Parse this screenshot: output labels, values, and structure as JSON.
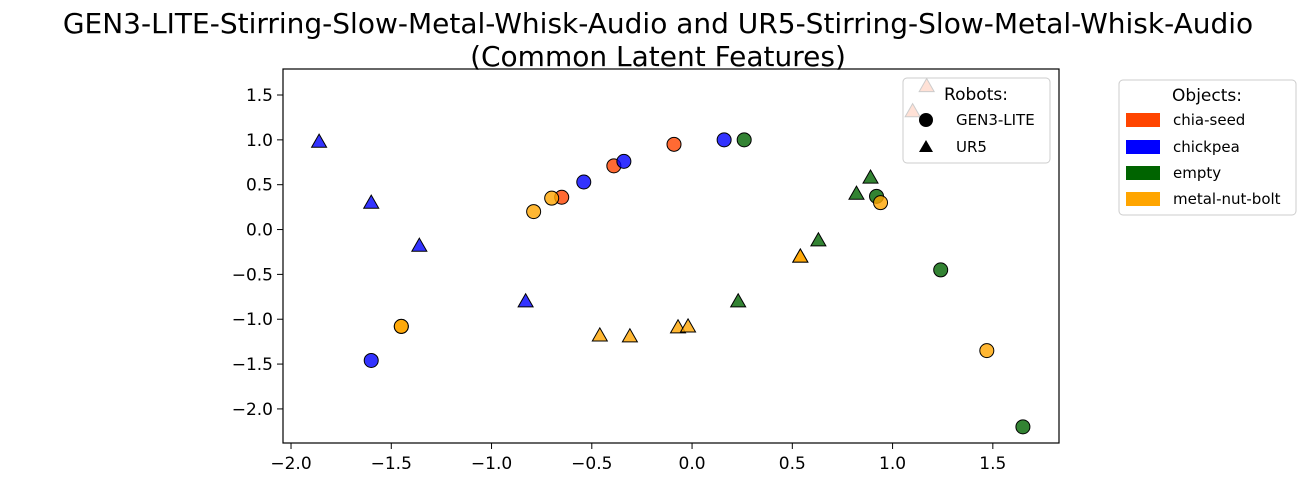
{
  "chart_data": {
    "type": "scatter",
    "title": "GEN3-LITE-Stirring-Slow-Metal-Whisk-Audio and UR5-Stirring-Slow-Metal-Whisk-Audio",
    "subtitle": "(Common Latent Features)",
    "xlabel": "",
    "ylabel": "",
    "xlim": [
      -2.04,
      1.83
    ],
    "ylim": [
      -2.38,
      1.79
    ],
    "x_ticks": [
      -2.0,
      -1.5,
      -1.0,
      -0.5,
      0.0,
      0.5,
      1.0,
      1.5
    ],
    "x_tick_labels": [
      "−2.0",
      "−1.5",
      "−1.0",
      "−0.5",
      "0.0",
      "0.5",
      "1.0",
      "1.5"
    ],
    "y_ticks": [
      1.5,
      1.0,
      0.5,
      0.0,
      -0.5,
      -1.0,
      -1.5,
      -2.0
    ],
    "y_tick_labels": [
      "1.5",
      "1.0",
      "0.5",
      "0.0",
      "−0.5",
      "−1.0",
      "−1.5",
      "−2.0"
    ],
    "grid": false,
    "colors": {
      "chia-seed": "#ff4500",
      "chickpea": "#0000ff",
      "empty": "#006400",
      "metal-nut-bolt": "#ffa500"
    },
    "robots_legend": {
      "title": "Robots:",
      "placement": "upper right inside plot",
      "entries": [
        {
          "label": "GEN3-LITE",
          "marker": "circle"
        },
        {
          "label": "UR5",
          "marker": "triangle"
        }
      ]
    },
    "objects_legend": {
      "title": "Objects:",
      "placement": "outside right",
      "entries": [
        {
          "label": "chia-seed",
          "color": "#ff4500"
        },
        {
          "label": "chickpea",
          "color": "#0000ff"
        },
        {
          "label": "empty",
          "color": "#006400"
        },
        {
          "label": "metal-nut-bolt",
          "color": "#ffa500"
        }
      ]
    },
    "points": [
      {
        "x": -0.09,
        "y": 0.95,
        "robot": "GEN3-LITE",
        "object": "chia-seed"
      },
      {
        "x": -0.39,
        "y": 0.71,
        "robot": "GEN3-LITE",
        "object": "chia-seed"
      },
      {
        "x": -0.65,
        "y": 0.36,
        "robot": "GEN3-LITE",
        "object": "chia-seed"
      },
      {
        "x": 0.16,
        "y": 1.0,
        "robot": "GEN3-LITE",
        "object": "chickpea"
      },
      {
        "x": -0.34,
        "y": 0.76,
        "robot": "GEN3-LITE",
        "object": "chickpea"
      },
      {
        "x": -0.54,
        "y": 0.53,
        "robot": "GEN3-LITE",
        "object": "chickpea"
      },
      {
        "x": -1.6,
        "y": -1.46,
        "robot": "GEN3-LITE",
        "object": "chickpea"
      },
      {
        "x": 0.26,
        "y": 1.0,
        "robot": "GEN3-LITE",
        "object": "empty"
      },
      {
        "x": 0.92,
        "y": 0.37,
        "robot": "GEN3-LITE",
        "object": "empty"
      },
      {
        "x": 1.24,
        "y": -0.45,
        "robot": "GEN3-LITE",
        "object": "empty"
      },
      {
        "x": 1.65,
        "y": -2.2,
        "robot": "GEN3-LITE",
        "object": "empty"
      },
      {
        "x": -0.7,
        "y": 0.35,
        "robot": "GEN3-LITE",
        "object": "metal-nut-bolt"
      },
      {
        "x": -0.79,
        "y": 0.2,
        "robot": "GEN3-LITE",
        "object": "metal-nut-bolt"
      },
      {
        "x": 0.94,
        "y": 0.3,
        "robot": "GEN3-LITE",
        "object": "metal-nut-bolt"
      },
      {
        "x": 1.47,
        "y": -1.35,
        "robot": "GEN3-LITE",
        "object": "metal-nut-bolt"
      },
      {
        "x": -1.45,
        "y": -1.08,
        "robot": "GEN3-LITE",
        "object": "metal-nut-bolt"
      },
      {
        "x": -1.45,
        "y": -1.08,
        "robot": "GEN3-LITE",
        "object": "metal-nut-bolt"
      },
      {
        "x": 1.17,
        "y": 1.6,
        "robot": "UR5",
        "object": "chia-seed"
      },
      {
        "x": 1.1,
        "y": 1.32,
        "robot": "UR5",
        "object": "chia-seed"
      },
      {
        "x": -1.86,
        "y": 0.98,
        "robot": "UR5",
        "object": "chickpea"
      },
      {
        "x": -1.6,
        "y": 0.3,
        "robot": "UR5",
        "object": "chickpea"
      },
      {
        "x": -1.36,
        "y": -0.18,
        "robot": "UR5",
        "object": "chickpea"
      },
      {
        "x": -0.83,
        "y": -0.8,
        "robot": "UR5",
        "object": "chickpea"
      },
      {
        "x": 0.89,
        "y": 0.58,
        "robot": "UR5",
        "object": "empty"
      },
      {
        "x": 0.82,
        "y": 0.4,
        "robot": "UR5",
        "object": "empty"
      },
      {
        "x": 0.63,
        "y": -0.12,
        "robot": "UR5",
        "object": "empty"
      },
      {
        "x": 0.23,
        "y": -0.8,
        "robot": "UR5",
        "object": "empty"
      },
      {
        "x": 0.54,
        "y": -0.3,
        "robot": "UR5",
        "object": "metal-nut-bolt"
      },
      {
        "x": 0.54,
        "y": -0.3,
        "robot": "UR5",
        "object": "metal-nut-bolt"
      },
      {
        "x": -0.46,
        "y": -1.18,
        "robot": "UR5",
        "object": "metal-nut-bolt"
      },
      {
        "x": -0.31,
        "y": -1.19,
        "robot": "UR5",
        "object": "metal-nut-bolt"
      },
      {
        "x": -0.07,
        "y": -1.09,
        "robot": "UR5",
        "object": "metal-nut-bolt"
      },
      {
        "x": -0.02,
        "y": -1.08,
        "robot": "UR5",
        "object": "metal-nut-bolt"
      }
    ]
  }
}
